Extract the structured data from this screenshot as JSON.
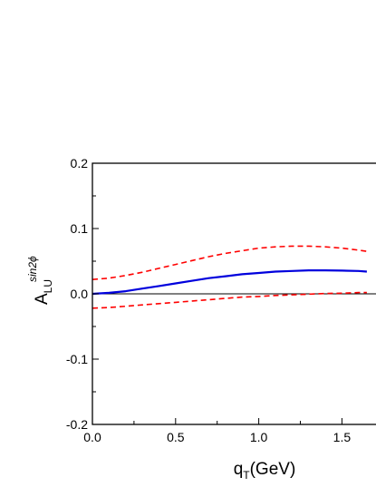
{
  "chart_data": {
    "type": "line",
    "xlabel": {
      "main": "q",
      "sub": "T",
      "rest": "(GeV)"
    },
    "ylabel": {
      "main": "A",
      "sub": "LU",
      "sup": "sin2ϕ"
    },
    "xlim": [
      0.0,
      1.65
    ],
    "ylim": [
      -0.2,
      0.2
    ],
    "x_ticks": [
      {
        "value": 0.0,
        "label": "0.0"
      },
      {
        "value": 0.5,
        "label": "0.5"
      },
      {
        "value": 1.0,
        "label": "1.0"
      },
      {
        "value": 1.5,
        "label": "1.5"
      }
    ],
    "y_ticks": [
      {
        "value": 0.2,
        "label": "0.2"
      },
      {
        "value": 0.1,
        "label": "0.1"
      },
      {
        "value": 0.0,
        "label": "0.0"
      },
      {
        "value": -0.1,
        "label": "-0.1"
      },
      {
        "value": -0.2,
        "label": "-0.2"
      }
    ],
    "zero_line": true,
    "grid": false,
    "series": [
      {
        "style": "solid",
        "color": "#0000dd",
        "x": [
          0.0,
          0.1,
          0.2,
          0.3,
          0.4,
          0.5,
          0.6,
          0.7,
          0.8,
          0.9,
          1.0,
          1.1,
          1.2,
          1.3,
          1.4,
          1.5,
          1.6,
          1.65
        ],
        "y": [
          0.0,
          0.0015,
          0.004,
          0.008,
          0.012,
          0.016,
          0.02,
          0.024,
          0.027,
          0.03,
          0.032,
          0.034,
          0.035,
          0.036,
          0.036,
          0.0355,
          0.035,
          0.034
        ]
      },
      {
        "style": "dashed",
        "color": "#ff0000",
        "x": [
          0.0,
          0.1,
          0.2,
          0.3,
          0.4,
          0.5,
          0.6,
          0.7,
          0.8,
          0.9,
          1.0,
          1.1,
          1.2,
          1.3,
          1.4,
          1.5,
          1.6,
          1.65
        ],
        "y": [
          0.022,
          0.024,
          0.028,
          0.033,
          0.039,
          0.045,
          0.051,
          0.057,
          0.062,
          0.066,
          0.07,
          0.072,
          0.073,
          0.073,
          0.072,
          0.07,
          0.067,
          0.065
        ]
      },
      {
        "style": "dashed",
        "color": "#ff0000",
        "x": [
          0.0,
          0.1,
          0.2,
          0.3,
          0.4,
          0.5,
          0.6,
          0.7,
          0.8,
          0.9,
          1.0,
          1.1,
          1.2,
          1.3,
          1.4,
          1.5,
          1.6,
          1.65
        ],
        "y": [
          -0.022,
          -0.021,
          -0.019,
          -0.017,
          -0.015,
          -0.013,
          -0.011,
          -0.009,
          -0.007,
          -0.005,
          -0.004,
          -0.0025,
          -0.0015,
          -0.0005,
          0.0005,
          0.001,
          0.002,
          0.002
        ]
      }
    ]
  }
}
